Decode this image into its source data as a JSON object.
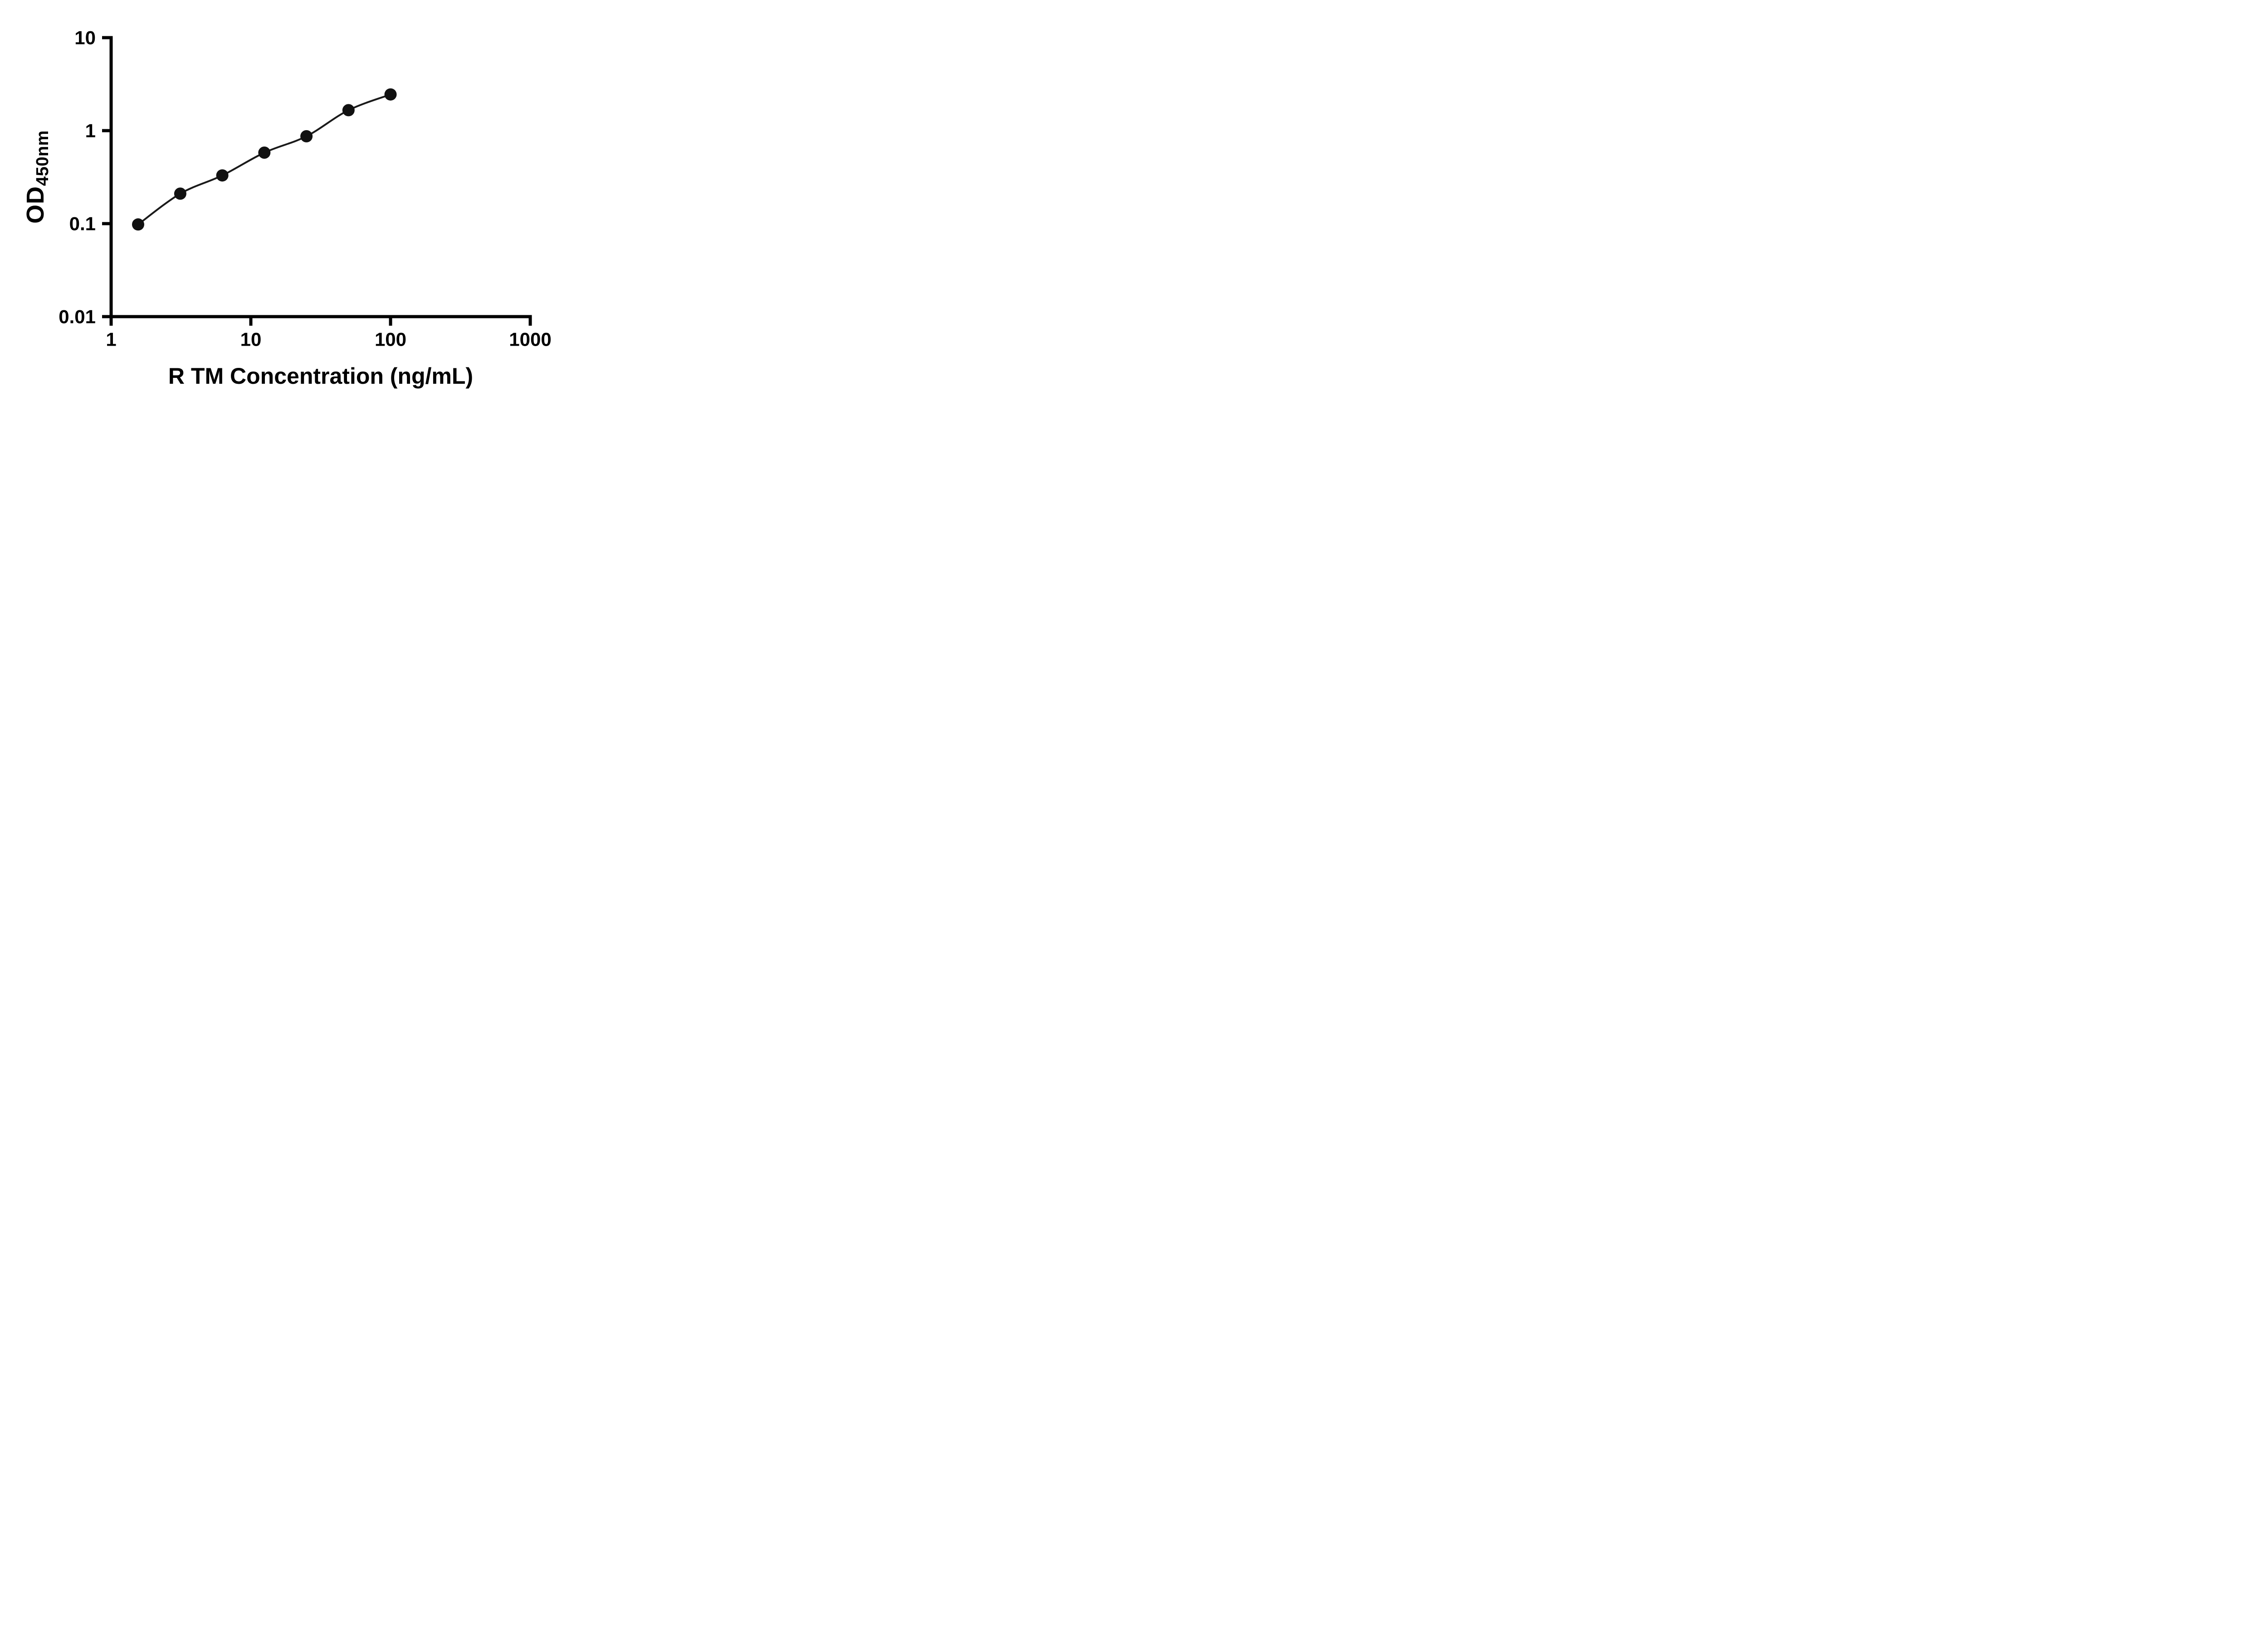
{
  "figure": {
    "colors": {
      "background": "#ffffff",
      "axis": "#000000",
      "marker": "#111111",
      "line": "#1a1a1a",
      "text": "#000000"
    }
  },
  "chart_data": {
    "type": "scatter",
    "title": "",
    "xlabel": "R TM Concentration (ng/mL)",
    "ylabel_main": "OD",
    "ylabel_sub": "450nm",
    "x_scale": "log",
    "y_scale": "log",
    "xlim": [
      1,
      1000
    ],
    "ylim": [
      0.01,
      10
    ],
    "x_ticks": [
      1,
      10,
      100,
      1000
    ],
    "x_tick_labels": [
      "1",
      "10",
      "100",
      "1000"
    ],
    "y_ticks": [
      0.01,
      0.1,
      1,
      10
    ],
    "y_tick_labels": [
      "0.01",
      "0.1",
      "1",
      "10"
    ],
    "grid": false,
    "legend": "none",
    "marker": "filled-circle",
    "curve": "smooth-fit-through-points",
    "x": [
      1.56,
      3.125,
      6.25,
      12.5,
      25,
      50,
      100
    ],
    "y": [
      0.098,
      0.21,
      0.33,
      0.58,
      0.87,
      1.66,
      2.45
    ]
  }
}
